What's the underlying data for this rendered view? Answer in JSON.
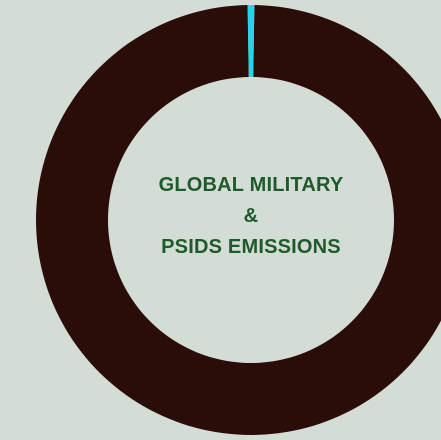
{
  "chart_data": {
    "type": "donut",
    "center_title": [
      "GLOBAL MILITARY",
      "&",
      "PSIDS EMISSIONS"
    ],
    "slices": [
      {
        "value": 99.5,
        "color": "#2a0d09"
      },
      {
        "value": 0.5,
        "color": "#27d3e6"
      }
    ],
    "background": "#d3ddd5",
    "title_color": "#1f5a2c"
  }
}
